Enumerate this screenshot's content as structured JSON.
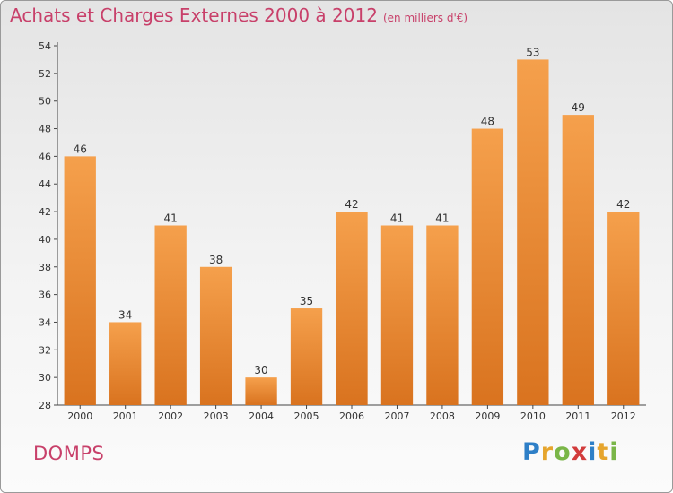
{
  "header": {
    "title": "Achats et Charges Externes 2000 à 2012",
    "subtitle": "(en milliers d'€)"
  },
  "location": "DOMPS",
  "logo": {
    "letters": [
      {
        "ch": "P",
        "color": "#2e7fc7"
      },
      {
        "ch": "r",
        "color": "#e6a52d"
      },
      {
        "ch": "o",
        "color": "#7ab648"
      },
      {
        "ch": "x",
        "color": "#d23b3b"
      },
      {
        "ch": "i",
        "color": "#2e7fc7"
      },
      {
        "ch": "t",
        "color": "#e6a52d"
      },
      {
        "ch": "i",
        "color": "#7ab648"
      }
    ]
  },
  "chart_data": {
    "type": "bar",
    "title": "Achats et Charges Externes 2000 à 2012",
    "subtitle": "(en milliers d'€)",
    "categories": [
      "2000",
      "2001",
      "2002",
      "2003",
      "2004",
      "2005",
      "2006",
      "2007",
      "2008",
      "2009",
      "2010",
      "2011",
      "2012"
    ],
    "values": [
      46,
      34,
      41,
      38,
      30,
      35,
      42,
      41,
      41,
      48,
      53,
      49,
      42
    ],
    "ylim": [
      28,
      54
    ],
    "yticks": [
      28,
      30,
      32,
      34,
      36,
      38,
      40,
      42,
      44,
      46,
      48,
      50,
      52,
      54
    ],
    "grid": false,
    "data_labels": true,
    "bar_color_top": "#f5a04c",
    "bar_color_bottom": "#d9731f"
  }
}
